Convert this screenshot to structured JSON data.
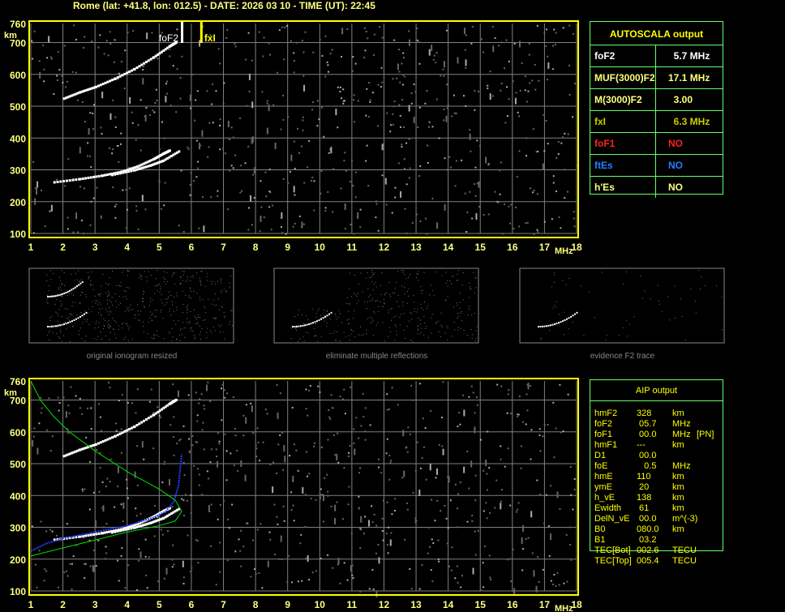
{
  "header": {
    "title": "Rome (lat: +41.8, lon: 012.5) - DATE: 2026 03 10 - TIME (UT): 22:45"
  },
  "autoscala": {
    "title": "AUTOSCALA output",
    "rows": [
      {
        "label": "foF2",
        "value": "  5.7 MHz",
        "color": "#ffffff"
      },
      {
        "label": "MUF(3000)F2",
        "value": "17.1 MHz",
        "color": "#ffff80"
      },
      {
        "label": "M(3000)F2",
        "value": "  3.00",
        "color": "#ffff80"
      },
      {
        "label": "fxI",
        "value": "  6.3 MHz",
        "color": "#cccc00"
      },
      {
        "label": "foF1",
        "value": "NO",
        "color": "#ff2020"
      },
      {
        "label": "ftEs",
        "value": "NO",
        "color": "#2080ff"
      },
      {
        "label": "h'Es",
        "value": "NO",
        "color": "#ffff80"
      }
    ]
  },
  "aip": {
    "title": "AIP output",
    "rows": [
      [
        "hmF2",
        "328",
        "km",
        ""
      ],
      [
        "foF2",
        " 05.7",
        "MHz",
        ""
      ],
      [
        "foF1",
        " 00.0",
        "MHz",
        "[PN]"
      ],
      [
        "hmF1",
        "---",
        "km",
        ""
      ],
      [
        "D1",
        " 00.0",
        "",
        ""
      ],
      [
        "foE",
        "   0.5",
        "MHz",
        ""
      ],
      [
        "hmE",
        "110",
        "km",
        ""
      ],
      [
        "ymE",
        " 20",
        "km",
        ""
      ],
      [
        "h_vE",
        "138",
        "km",
        ""
      ],
      [
        "Ewidth",
        " 61",
        "km",
        ""
      ],
      [
        "DelN_vE",
        " 00.0",
        "m^(-3)",
        ""
      ],
      [
        "B0",
        "080.0",
        "km",
        ""
      ],
      [
        "B1",
        " 03.2",
        "",
        ""
      ],
      [
        "TEC[Bot]",
        "002.6",
        "TECU",
        ""
      ],
      [
        "TEC[Top]",
        "005.4",
        "TECU",
        ""
      ]
    ]
  },
  "thumbnails": [
    {
      "caption": "original ionogram resized"
    },
    {
      "caption": "eliminate multiple reflections"
    },
    {
      "caption": "evidence F2 trace"
    }
  ],
  "markers": {
    "foF2_label": "foF2",
    "fxI_label": "fxI",
    "foF2_mhz": 5.7,
    "fxI_mhz": 6.3
  },
  "colors": {
    "axis": "#ffff00",
    "grid": "#808080",
    "trace": "#ffffff",
    "blue_trace": "#2040ff",
    "profile": "#00e000",
    "table_border": "#66ff66"
  },
  "chart_data": [
    {
      "type": "scatter",
      "title": "",
      "xlabel": "MHz",
      "ylabel": "km",
      "xlim": [
        1,
        18
      ],
      "ylim": [
        100,
        760
      ],
      "xticks": [
        "1",
        "2",
        "3",
        "4",
        "5",
        "6",
        "7",
        "8",
        "9",
        "10",
        "11",
        "12",
        "13",
        "14",
        "15",
        "16",
        "17",
        "18"
      ],
      "yticks": [
        "100",
        "200",
        "300",
        "400",
        "500",
        "600",
        "700",
        "760"
      ],
      "grid": true,
      "series": [
        {
          "values": [
            [
              1.7,
              262
            ],
            [
              2.5,
              272
            ],
            [
              3.2,
              283
            ],
            [
              3.8,
              295
            ],
            [
              4.3,
              312
            ],
            [
              4.8,
              335
            ],
            [
              5.1,
              352
            ],
            [
              5.3,
              362
            ]
          ]
        },
        {
          "values": [
            [
              3.5,
              285
            ],
            [
              4.2,
              300
            ],
            [
              4.7,
              315
            ],
            [
              5.1,
              330
            ],
            [
              5.6,
              360
            ]
          ]
        },
        {
          "values": [
            [
              2.0,
              525
            ],
            [
              2.5,
              545
            ],
            [
              3.0,
              562
            ],
            [
              3.6,
              588
            ],
            [
              4.2,
              618
            ],
            [
              4.8,
              655
            ],
            [
              5.3,
              690
            ],
            [
              5.5,
              702
            ]
          ]
        }
      ]
    },
    {
      "type": "scatter",
      "title": "",
      "xlabel": "MHz",
      "ylabel": "km",
      "xlim": [
        1,
        18
      ],
      "ylim": [
        100,
        760
      ],
      "xticks": [
        "1",
        "2",
        "3",
        "4",
        "5",
        "6",
        "7",
        "8",
        "9",
        "10",
        "11",
        "12",
        "13",
        "14",
        "15",
        "16",
        "17",
        "18"
      ],
      "yticks": [
        "100",
        "200",
        "300",
        "400",
        "500",
        "600",
        "700",
        "760"
      ],
      "grid": true,
      "series": [
        {
          "values": [
            [
              1.7,
              262
            ],
            [
              2.5,
              272
            ],
            [
              3.2,
              283
            ],
            [
              3.8,
              295
            ],
            [
              4.3,
              312
            ],
            [
              4.8,
              335
            ],
            [
              5.1,
              352
            ],
            [
              5.3,
              362
            ]
          ]
        },
        {
          "values": [
            [
              3.5,
              285
            ],
            [
              4.2,
              300
            ],
            [
              4.7,
              315
            ],
            [
              5.1,
              330
            ],
            [
              5.6,
              360
            ]
          ]
        },
        {
          "values": [
            [
              2.0,
              525
            ],
            [
              2.5,
              545
            ],
            [
              3.0,
              562
            ],
            [
              3.6,
              588
            ],
            [
              4.2,
              618
            ],
            [
              4.8,
              655
            ],
            [
              5.3,
              690
            ],
            [
              5.5,
              702
            ]
          ]
        },
        {
          "values": [
            [
              1.0,
              225
            ],
            [
              1.5,
              250
            ],
            [
              2.0,
              265
            ],
            [
              3.0,
              285
            ],
            [
              4.0,
              305
            ],
            [
              4.8,
              330
            ],
            [
              5.2,
              350
            ],
            [
              5.45,
              380
            ],
            [
              5.6,
              430
            ],
            [
              5.7,
              530
            ]
          ],
          "color": "#2040ff"
        },
        {
          "values": [
            [
              1.0,
              760
            ],
            [
              1.3,
              700
            ],
            [
              1.7,
              650
            ],
            [
              2.2,
              600
            ],
            [
              3.0,
              540
            ],
            [
              4.0,
              475
            ],
            [
              5.0,
              420
            ],
            [
              5.5,
              385
            ],
            [
              5.7,
              350
            ],
            [
              5.5,
              320
            ],
            [
              5.0,
              305
            ],
            [
              4.0,
              285
            ],
            [
              3.0,
              260
            ],
            [
              2.0,
              235
            ],
            [
              1.0,
              210
            ]
          ],
          "color": "#00e000"
        }
      ]
    }
  ]
}
